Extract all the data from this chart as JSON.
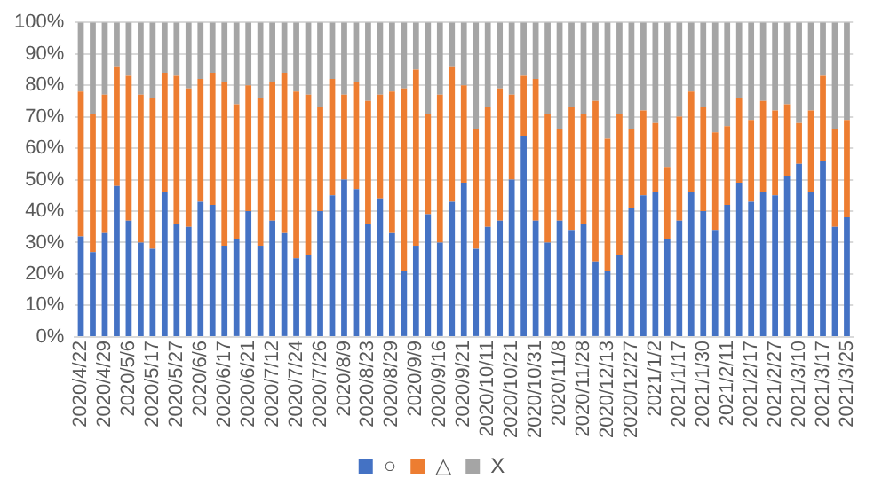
{
  "chart_data": {
    "type": "bar",
    "stacked": true,
    "categories": [
      "2020/4/22",
      null,
      "2020/4/29",
      null,
      "2020/5/6",
      null,
      "2020/5/17",
      null,
      "2020/5/27",
      null,
      "2020/6/6",
      null,
      "2020/6/17",
      null,
      "2020/6/21",
      null,
      "2020/7/12",
      null,
      "2020/7/24",
      null,
      "2020/7/26",
      null,
      "2020/8/9",
      null,
      "2020/8/23",
      null,
      "2020/8/29",
      null,
      "2020/9/9",
      null,
      "2020/9/16",
      null,
      "2020/9/21",
      null,
      "2020/10/11",
      null,
      "2020/10/21",
      null,
      "2020/10/31",
      null,
      "2020/11/8",
      null,
      "2020/11/28",
      null,
      "2020/12/13",
      null,
      "2020/12/27",
      null,
      "2021/1/2",
      null,
      "2021/1/17",
      null,
      "2021/1/30",
      null,
      "2021/2/11",
      null,
      "2021/2/17",
      null,
      "2021/2/27",
      null,
      "2021/3/10",
      null,
      "2021/3/17",
      null,
      "2021/3/25"
    ],
    "series": [
      {
        "name": "○",
        "color": "#4472c4",
        "values": [
          32,
          27,
          33,
          48,
          37,
          30,
          28,
          46,
          36,
          35,
          43,
          42,
          29,
          31,
          40,
          29,
          37,
          33,
          25,
          26,
          40,
          45,
          50,
          47,
          36,
          44,
          33,
          21,
          29,
          39,
          30,
          43,
          49,
          28,
          35,
          37,
          50,
          64,
          37,
          30,
          37,
          34,
          36,
          24,
          21,
          26,
          41,
          45,
          46,
          31,
          37,
          46,
          40,
          34,
          42,
          49,
          43,
          46,
          45,
          51,
          55,
          46,
          56,
          35,
          38
        ]
      },
      {
        "name": "△",
        "color": "#ed7d31",
        "values": [
          46,
          44,
          44,
          38,
          46,
          47,
          48,
          38,
          47,
          44,
          39,
          42,
          52,
          43,
          40,
          47,
          44,
          51,
          53,
          51,
          33,
          37,
          27,
          34,
          39,
          33,
          45,
          58,
          56,
          32,
          47,
          43,
          31,
          38,
          38,
          42,
          27,
          19,
          45,
          41,
          29,
          39,
          35,
          51,
          42,
          45,
          25,
          27,
          22,
          23,
          33,
          32,
          33,
          31,
          25,
          27,
          26,
          29,
          27,
          23,
          13,
          26,
          27,
          31,
          31
        ]
      },
      {
        "name": "X",
        "color": "#a5a5a5",
        "values": [
          22,
          29,
          23,
          14,
          17,
          23,
          24,
          16,
          17,
          21,
          18,
          16,
          19,
          26,
          20,
          24,
          19,
          16,
          22,
          23,
          27,
          18,
          23,
          19,
          25,
          23,
          22,
          21,
          15,
          29,
          23,
          14,
          20,
          34,
          27,
          21,
          23,
          17,
          18,
          29,
          34,
          27,
          29,
          25,
          37,
          29,
          34,
          28,
          32,
          46,
          30,
          22,
          27,
          35,
          33,
          24,
          31,
          25,
          28,
          26,
          32,
          28,
          17,
          34,
          31
        ]
      }
    ],
    "ylim": [
      0,
      100
    ],
    "yticks": [
      {
        "value": 0,
        "label": "0%"
      },
      {
        "value": 10,
        "label": "10%"
      },
      {
        "value": 20,
        "label": "20%"
      },
      {
        "value": 30,
        "label": "30%"
      },
      {
        "value": 40,
        "label": "40%"
      },
      {
        "value": 50,
        "label": "50%"
      },
      {
        "value": 60,
        "label": "60%"
      },
      {
        "value": 70,
        "label": "70%"
      },
      {
        "value": 80,
        "label": "80%"
      },
      {
        "value": 90,
        "label": "90%"
      },
      {
        "value": 100,
        "label": "100%"
      }
    ],
    "grid": "y",
    "legend": "bottom"
  }
}
